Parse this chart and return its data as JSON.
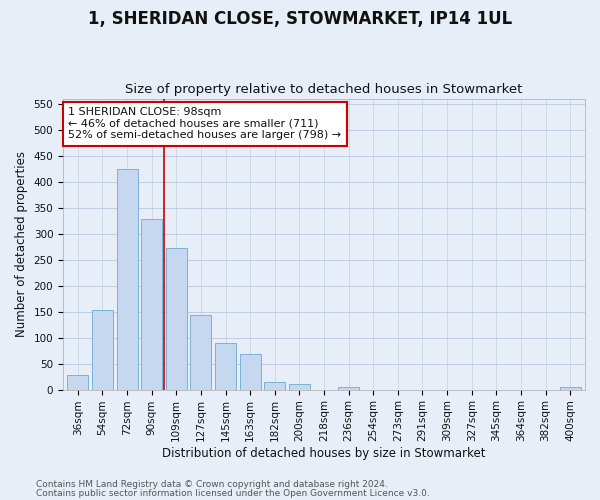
{
  "title": "1, SHERIDAN CLOSE, STOWMARKET, IP14 1UL",
  "subtitle": "Size of property relative to detached houses in Stowmarket",
  "xlabel": "Distribution of detached houses by size in Stowmarket",
  "ylabel": "Number of detached properties",
  "categories": [
    "36sqm",
    "54sqm",
    "72sqm",
    "90sqm",
    "109sqm",
    "127sqm",
    "145sqm",
    "163sqm",
    "182sqm",
    "200sqm",
    "218sqm",
    "236sqm",
    "254sqm",
    "273sqm",
    "291sqm",
    "309sqm",
    "327sqm",
    "345sqm",
    "364sqm",
    "382sqm",
    "400sqm"
  ],
  "values": [
    28,
    153,
    424,
    329,
    272,
    144,
    90,
    68,
    14,
    11,
    0,
    5,
    0,
    0,
    0,
    0,
    0,
    0,
    0,
    0,
    5
  ],
  "bar_color": "#c5d8ef",
  "bar_edge_color": "#6aaad4",
  "vline_x": 3.5,
  "vline_color": "#cc0000",
  "annotation_text": "1 SHERIDAN CLOSE: 98sqm\n← 46% of detached houses are smaller (711)\n52% of semi-detached houses are larger (798) →",
  "annotation_box_color": "#ffffff",
  "annotation_box_edge": "#cc0000",
  "ylim": [
    0,
    560
  ],
  "yticks": [
    0,
    50,
    100,
    150,
    200,
    250,
    300,
    350,
    400,
    450,
    500,
    550
  ],
  "footer1": "Contains HM Land Registry data © Crown copyright and database right 2024.",
  "footer2": "Contains public sector information licensed under the Open Government Licence v3.0.",
  "bg_color": "#e8eef8",
  "plot_bg": "#e8eef8",
  "grid_color": "#b8c8de",
  "title_fontsize": 12,
  "subtitle_fontsize": 9.5,
  "xlabel_fontsize": 8.5,
  "ylabel_fontsize": 8.5,
  "tick_fontsize": 7.5,
  "annotation_fontsize": 8,
  "footer_fontsize": 6.5
}
